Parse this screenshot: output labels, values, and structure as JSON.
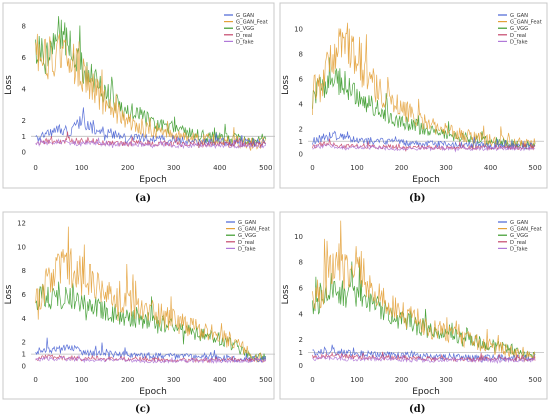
{
  "colors": {
    "G_GAN": "#4a63d4",
    "G_GAN_Feat": "#e3a13a",
    "G_VGG": "#3a9a2a",
    "D_real": "#c4466a",
    "D_fake": "#b079d8",
    "frame": "#c8c8c8",
    "refline": "#bdbdbd"
  },
  "chart_data": [
    {
      "type": "line",
      "caption": "(a)",
      "xlabel": "Epoch",
      "ylabel": "Loss",
      "xlim": [
        -10,
        520
      ],
      "ylim": [
        -0.5,
        9
      ],
      "xticks": [
        0,
        100,
        200,
        300,
        400,
        500
      ],
      "yticks": [
        0,
        1,
        2,
        4,
        6,
        8
      ],
      "refline_y": 1,
      "legend_position": "top-right",
      "series": [
        {
          "name": "G_GAN",
          "key": "G_GAN",
          "x": [
            0,
            25,
            50,
            75,
            100,
            125,
            150,
            175,
            200,
            225,
            250,
            275,
            300,
            325,
            350,
            375,
            400,
            425,
            450,
            475,
            500
          ],
          "values": [
            0.9,
            1.1,
            1.6,
            1.2,
            2.0,
            1.4,
            1.0,
            1.1,
            0.8,
            0.9,
            0.9,
            0.7,
            0.8,
            0.7,
            0.7,
            0.6,
            0.7,
            0.6,
            0.6,
            0.6,
            0.6
          ]
        },
        {
          "name": "G_GAN_Feat",
          "key": "G_GAN_Feat",
          "x": [
            0,
            25,
            50,
            75,
            100,
            125,
            150,
            175,
            200,
            225,
            250,
            275,
            300,
            325,
            350,
            375,
            400,
            425,
            450,
            475,
            500
          ],
          "values": [
            6.5,
            6.2,
            6.3,
            5.8,
            5.0,
            4.2,
            3.0,
            2.5,
            2.0,
            1.6,
            1.3,
            1.2,
            1.0,
            0.9,
            0.8,
            0.8,
            0.7,
            0.7,
            0.6,
            0.6,
            0.6
          ]
        },
        {
          "name": "G_VGG",
          "key": "G_VGG",
          "x": [
            0,
            25,
            50,
            75,
            100,
            125,
            150,
            175,
            200,
            225,
            250,
            275,
            300,
            325,
            350,
            375,
            400,
            425,
            450,
            475,
            500
          ],
          "values": [
            6.8,
            6.0,
            7.5,
            6.5,
            5.5,
            4.5,
            3.8,
            3.0,
            2.6,
            2.3,
            2.0,
            1.6,
            1.5,
            1.3,
            1.1,
            1.0,
            0.9,
            0.8,
            0.8,
            0.7,
            0.7
          ]
        },
        {
          "name": "D_real",
          "key": "D_real",
          "x": [
            0,
            25,
            50,
            75,
            100,
            125,
            150,
            175,
            200,
            225,
            250,
            275,
            300,
            325,
            350,
            375,
            400,
            425,
            450,
            475,
            500
          ],
          "values": [
            0.6,
            0.7,
            0.6,
            0.8,
            0.6,
            0.7,
            0.6,
            0.6,
            0.5,
            0.6,
            0.5,
            0.6,
            0.5,
            0.5,
            0.5,
            0.5,
            0.5,
            0.5,
            0.5,
            0.5,
            0.5
          ]
        },
        {
          "name": "D_fake",
          "key": "D_fake",
          "x": [
            0,
            25,
            50,
            75,
            100,
            125,
            150,
            175,
            200,
            225,
            250,
            275,
            300,
            325,
            350,
            375,
            400,
            425,
            450,
            475,
            500
          ],
          "values": [
            0.5,
            0.6,
            0.7,
            0.6,
            0.5,
            0.6,
            0.5,
            0.5,
            0.5,
            0.5,
            0.4,
            0.5,
            0.4,
            0.4,
            0.4,
            0.4,
            0.4,
            0.4,
            0.4,
            0.4,
            0.4
          ]
        }
      ]
    },
    {
      "type": "line",
      "caption": "(b)",
      "xlabel": "Epoch",
      "ylabel": "Loss",
      "xlim": [
        -10,
        520
      ],
      "ylim": [
        -0.5,
        11.5
      ],
      "xticks": [
        0,
        100,
        200,
        300,
        400,
        500
      ],
      "yticks": [
        0,
        1,
        2,
        4,
        6,
        8,
        10
      ],
      "refline_y": 1,
      "legend_position": "top-right",
      "series": [
        {
          "name": "G_GAN",
          "key": "G_GAN",
          "x": [
            0,
            25,
            50,
            75,
            100,
            125,
            150,
            175,
            200,
            225,
            250,
            275,
            300,
            325,
            350,
            375,
            400,
            425,
            450,
            475,
            500
          ],
          "values": [
            1.0,
            1.3,
            1.5,
            1.2,
            1.1,
            1.0,
            1.0,
            0.9,
            0.9,
            0.8,
            0.8,
            0.8,
            0.7,
            0.7,
            0.7,
            0.7,
            0.6,
            0.6,
            0.6,
            0.6,
            0.6
          ]
        },
        {
          "name": "G_GAN_Feat",
          "key": "G_GAN_Feat",
          "x": [
            0,
            25,
            50,
            75,
            100,
            125,
            150,
            175,
            200,
            225,
            250,
            275,
            300,
            325,
            350,
            375,
            400,
            425,
            450,
            475,
            500
          ],
          "values": [
            5.0,
            6.0,
            8.0,
            9.0,
            7.5,
            6.0,
            5.0,
            4.2,
            3.6,
            3.0,
            2.6,
            2.2,
            1.9,
            1.6,
            1.4,
            1.2,
            1.1,
            1.0,
            0.9,
            0.8,
            0.7
          ]
        },
        {
          "name": "G_VGG",
          "key": "G_VGG",
          "x": [
            0,
            25,
            50,
            75,
            100,
            125,
            150,
            175,
            200,
            225,
            250,
            275,
            300,
            325,
            350,
            375,
            400,
            425,
            450,
            475,
            500
          ],
          "values": [
            4.5,
            5.5,
            6.0,
            5.5,
            4.5,
            4.0,
            3.5,
            3.0,
            2.6,
            2.3,
            2.0,
            1.8,
            1.6,
            1.4,
            1.3,
            1.1,
            1.0,
            0.9,
            0.8,
            0.7,
            0.7
          ]
        },
        {
          "name": "D_real",
          "key": "D_real",
          "x": [
            0,
            25,
            50,
            75,
            100,
            125,
            150,
            175,
            200,
            225,
            250,
            275,
            300,
            325,
            350,
            375,
            400,
            425,
            450,
            475,
            500
          ],
          "values": [
            0.6,
            0.8,
            0.7,
            0.6,
            0.6,
            0.6,
            0.5,
            0.6,
            0.5,
            0.5,
            0.5,
            0.5,
            0.5,
            0.5,
            0.5,
            0.5,
            0.5,
            0.5,
            0.5,
            0.5,
            0.5
          ]
        },
        {
          "name": "D_fake",
          "key": "D_fake",
          "x": [
            0,
            25,
            50,
            75,
            100,
            125,
            150,
            175,
            200,
            225,
            250,
            275,
            300,
            325,
            350,
            375,
            400,
            425,
            450,
            475,
            500
          ],
          "values": [
            0.5,
            0.6,
            0.6,
            0.5,
            0.5,
            0.5,
            0.5,
            0.4,
            0.4,
            0.4,
            0.4,
            0.4,
            0.4,
            0.4,
            0.4,
            0.4,
            0.4,
            0.4,
            0.4,
            0.4,
            0.4
          ]
        }
      ]
    },
    {
      "type": "line",
      "caption": "(c)",
      "xlabel": "Epoch",
      "ylabel": "Loss",
      "xlim": [
        -10,
        520
      ],
      "ylim": [
        -0.5,
        12.5
      ],
      "xticks": [
        0,
        100,
        200,
        300,
        400,
        500
      ],
      "yticks": [
        0,
        1,
        2,
        4,
        6,
        8,
        10,
        12
      ],
      "refline_y": 1,
      "legend_position": "top-right",
      "series": [
        {
          "name": "G_GAN",
          "key": "G_GAN",
          "x": [
            0,
            25,
            50,
            75,
            100,
            125,
            150,
            175,
            200,
            225,
            250,
            275,
            300,
            325,
            350,
            375,
            400,
            425,
            450,
            475,
            500
          ],
          "values": [
            1.2,
            1.5,
            1.3,
            1.6,
            1.2,
            1.1,
            1.2,
            1.0,
            1.0,
            0.9,
            0.9,
            0.8,
            0.8,
            0.8,
            0.7,
            0.7,
            0.7,
            0.6,
            0.6,
            0.6,
            0.6
          ]
        },
        {
          "name": "G_GAN_Feat",
          "key": "G_GAN_Feat",
          "x": [
            0,
            25,
            50,
            75,
            100,
            125,
            150,
            175,
            200,
            225,
            250,
            275,
            300,
            325,
            350,
            375,
            400,
            425,
            450,
            475,
            500
          ],
          "values": [
            5.5,
            7.0,
            8.0,
            8.5,
            7.5,
            7.0,
            6.5,
            6.0,
            5.5,
            5.0,
            4.5,
            4.2,
            3.8,
            3.5,
            3.0,
            2.8,
            2.5,
            2.0,
            1.5,
            0.8,
            0.7
          ]
        },
        {
          "name": "G_VGG",
          "key": "G_VGG",
          "x": [
            0,
            25,
            50,
            75,
            100,
            125,
            150,
            175,
            200,
            225,
            250,
            275,
            300,
            325,
            350,
            375,
            400,
            425,
            450,
            475,
            500
          ],
          "values": [
            5.5,
            5.8,
            6.0,
            5.5,
            5.0,
            5.0,
            4.5,
            4.5,
            4.0,
            4.0,
            3.5,
            3.5,
            3.2,
            3.0,
            2.8,
            2.5,
            2.3,
            1.8,
            1.2,
            0.8,
            0.7
          ]
        },
        {
          "name": "D_real",
          "key": "D_real",
          "x": [
            0,
            25,
            50,
            75,
            100,
            125,
            150,
            175,
            200,
            225,
            250,
            275,
            300,
            325,
            350,
            375,
            400,
            425,
            450,
            475,
            500
          ],
          "values": [
            0.6,
            0.8,
            0.7,
            0.7,
            0.6,
            0.7,
            0.6,
            0.6,
            0.6,
            0.6,
            0.5,
            0.5,
            0.5,
            0.5,
            0.5,
            0.5,
            0.5,
            0.5,
            0.5,
            0.5,
            0.5
          ]
        },
        {
          "name": "D_fake",
          "key": "D_fake",
          "x": [
            0,
            25,
            50,
            75,
            100,
            125,
            150,
            175,
            200,
            225,
            250,
            275,
            300,
            325,
            350,
            375,
            400,
            425,
            450,
            475,
            500
          ],
          "values": [
            0.5,
            0.6,
            0.6,
            0.6,
            0.5,
            0.5,
            0.5,
            0.5,
            0.5,
            0.4,
            0.4,
            0.4,
            0.4,
            0.4,
            0.4,
            0.4,
            0.4,
            0.4,
            0.4,
            0.4,
            0.4
          ]
        }
      ]
    },
    {
      "type": "line",
      "caption": "(d)",
      "xlabel": "Epoch",
      "ylabel": "Loss",
      "xlim": [
        -10,
        520
      ],
      "ylim": [
        -0.5,
        11.5
      ],
      "xticks": [
        0,
        100,
        200,
        300,
        400,
        500
      ],
      "yticks": [
        0,
        1,
        2,
        4,
        6,
        8,
        10
      ],
      "refline_y": 1,
      "legend_position": "top-right",
      "series": [
        {
          "name": "G_GAN",
          "key": "G_GAN",
          "x": [
            0,
            25,
            50,
            75,
            100,
            125,
            150,
            175,
            200,
            225,
            250,
            275,
            300,
            325,
            350,
            375,
            400,
            425,
            450,
            475,
            500
          ],
          "values": [
            1.0,
            1.2,
            1.1,
            1.0,
            0.9,
            0.9,
            0.9,
            0.8,
            0.8,
            0.8,
            0.7,
            0.7,
            0.7,
            0.7,
            0.6,
            0.6,
            0.6,
            0.6,
            0.6,
            0.6,
            0.6
          ]
        },
        {
          "name": "G_GAN_Feat",
          "key": "G_GAN_Feat",
          "x": [
            0,
            25,
            50,
            75,
            100,
            125,
            150,
            175,
            200,
            225,
            250,
            275,
            300,
            325,
            350,
            375,
            400,
            425,
            450,
            475,
            500
          ],
          "values": [
            5.0,
            6.0,
            8.5,
            7.5,
            8.5,
            6.0,
            5.5,
            4.5,
            4.0,
            3.5,
            3.0,
            2.8,
            2.5,
            2.2,
            2.0,
            1.8,
            1.5,
            1.3,
            1.0,
            0.8,
            0.7
          ]
        },
        {
          "name": "G_VGG",
          "key": "G_VGG",
          "x": [
            0,
            25,
            50,
            75,
            100,
            125,
            150,
            175,
            200,
            225,
            250,
            275,
            300,
            325,
            350,
            375,
            400,
            425,
            450,
            475,
            500
          ],
          "values": [
            4.5,
            5.5,
            6.0,
            5.5,
            6.0,
            5.0,
            4.5,
            4.0,
            3.5,
            3.2,
            2.8,
            2.6,
            2.4,
            2.2,
            2.0,
            1.8,
            1.6,
            1.4,
            1.2,
            0.8,
            0.7
          ]
        },
        {
          "name": "D_real",
          "key": "D_real",
          "x": [
            0,
            25,
            50,
            75,
            100,
            125,
            150,
            175,
            200,
            225,
            250,
            275,
            300,
            325,
            350,
            375,
            400,
            425,
            450,
            475,
            500
          ],
          "values": [
            0.7,
            0.7,
            0.8,
            0.7,
            0.7,
            0.6,
            0.6,
            0.6,
            0.6,
            0.6,
            0.5,
            0.5,
            0.5,
            0.5,
            0.5,
            0.5,
            0.5,
            0.5,
            0.5,
            0.5,
            0.5
          ]
        },
        {
          "name": "D_fake",
          "key": "D_fake",
          "x": [
            0,
            25,
            50,
            75,
            100,
            125,
            150,
            175,
            200,
            225,
            250,
            275,
            300,
            325,
            350,
            375,
            400,
            425,
            450,
            475,
            500
          ],
          "values": [
            0.5,
            0.6,
            0.6,
            0.5,
            0.5,
            0.5,
            0.5,
            0.5,
            0.4,
            0.4,
            0.4,
            0.4,
            0.4,
            0.4,
            0.4,
            0.4,
            0.4,
            0.4,
            0.4,
            0.4,
            0.4
          ]
        }
      ]
    }
  ]
}
